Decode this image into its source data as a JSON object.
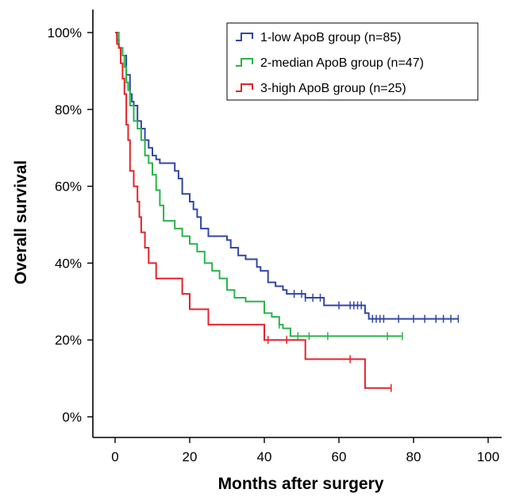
{
  "chart_data": {
    "type": "line",
    "xlabel": "Months after surgery",
    "ylabel": "Overall survival",
    "xlim": [
      -6,
      104
    ],
    "ylim": [
      -6,
      104
    ],
    "x_ticks": [
      0,
      20,
      40,
      60,
      80,
      100
    ],
    "y_ticks": [
      0,
      20,
      40,
      60,
      80,
      100
    ],
    "y_tick_labels": [
      "0%",
      "20%",
      "40%",
      "60%",
      "80%",
      "100%"
    ],
    "x_tick_labels": [
      "0",
      "20",
      "40",
      "60",
      "80",
      "100"
    ],
    "grid": false,
    "legend_position": "top-right",
    "series": [
      {
        "name": "1-low ApoB group (n=85)",
        "color": "#3046a6",
        "points": [
          [
            0,
            100
          ],
          [
            0.5,
            98
          ],
          [
            1,
            96
          ],
          [
            2,
            94
          ],
          [
            3,
            89
          ],
          [
            4,
            84
          ],
          [
            4.5,
            82
          ],
          [
            5,
            81
          ],
          [
            6,
            77
          ],
          [
            7,
            75
          ],
          [
            8,
            72
          ],
          [
            9,
            70
          ],
          [
            10,
            68
          ],
          [
            11,
            67
          ],
          [
            12,
            66
          ],
          [
            15,
            66
          ],
          [
            16,
            64
          ],
          [
            17,
            62
          ],
          [
            18,
            58
          ],
          [
            20,
            56
          ],
          [
            21,
            54
          ],
          [
            22,
            52
          ],
          [
            23,
            49
          ],
          [
            25,
            47
          ],
          [
            30,
            46
          ],
          [
            31,
            44
          ],
          [
            33,
            42
          ],
          [
            35,
            41
          ],
          [
            38,
            39
          ],
          [
            39,
            38
          ],
          [
            41,
            35
          ],
          [
            43,
            34
          ],
          [
            45,
            33
          ],
          [
            46,
            32
          ],
          [
            51,
            31
          ],
          [
            55,
            31
          ],
          [
            56,
            29
          ],
          [
            59,
            29
          ],
          [
            60,
            29
          ],
          [
            66,
            29
          ],
          [
            67,
            27
          ],
          [
            68,
            25.5
          ],
          [
            70,
            25.5
          ],
          [
            92,
            25.5
          ]
        ],
        "censor_x": [
          48,
          50,
          51,
          53,
          55,
          60,
          63,
          64,
          65,
          66,
          69,
          70,
          71,
          72,
          76,
          80,
          83,
          86,
          88,
          90,
          92
        ]
      },
      {
        "name": "2-median ApoB group (n=47)",
        "color": "#2bb34a",
        "points": [
          [
            0,
            100
          ],
          [
            1,
            96
          ],
          [
            2,
            94
          ],
          [
            2.5,
            91
          ],
          [
            3,
            87
          ],
          [
            3.5,
            85
          ],
          [
            4,
            81
          ],
          [
            5,
            77
          ],
          [
            6,
            75
          ],
          [
            7,
            72
          ],
          [
            8,
            68
          ],
          [
            9,
            66
          ],
          [
            10,
            63
          ],
          [
            11,
            59
          ],
          [
            12,
            55
          ],
          [
            13,
            51
          ],
          [
            14,
            51
          ],
          [
            16,
            49
          ],
          [
            18,
            47
          ],
          [
            20,
            45
          ],
          [
            22,
            43
          ],
          [
            24,
            40
          ],
          [
            26,
            38
          ],
          [
            28,
            36
          ],
          [
            30,
            33
          ],
          [
            32,
            31
          ],
          [
            35,
            30
          ],
          [
            40,
            27
          ],
          [
            42,
            26
          ],
          [
            44,
            24
          ],
          [
            45,
            23
          ],
          [
            47,
            21
          ],
          [
            77,
            21
          ]
        ],
        "censor_x": [
          44,
          49,
          52,
          57,
          73,
          77
        ]
      },
      {
        "name": "3-high ApoB group (n=25)",
        "color": "#e4232b",
        "points": [
          [
            0,
            100
          ],
          [
            0.5,
            97
          ],
          [
            1,
            96
          ],
          [
            1.5,
            92
          ],
          [
            2,
            88
          ],
          [
            2.5,
            84
          ],
          [
            3,
            76
          ],
          [
            3.5,
            72
          ],
          [
            4,
            64
          ],
          [
            5,
            60
          ],
          [
            6,
            56
          ],
          [
            6.5,
            52
          ],
          [
            7,
            48
          ],
          [
            8,
            44
          ],
          [
            9,
            40
          ],
          [
            10,
            40
          ],
          [
            11,
            36
          ],
          [
            18,
            32
          ],
          [
            20,
            28
          ],
          [
            25,
            24
          ],
          [
            40,
            20
          ],
          [
            45,
            20
          ],
          [
            51,
            15
          ],
          [
            58,
            15
          ],
          [
            66,
            15
          ],
          [
            67,
            7.5
          ],
          [
            74,
            7.5
          ]
        ],
        "censor_x": [
          41,
          46,
          63,
          74
        ]
      }
    ]
  }
}
